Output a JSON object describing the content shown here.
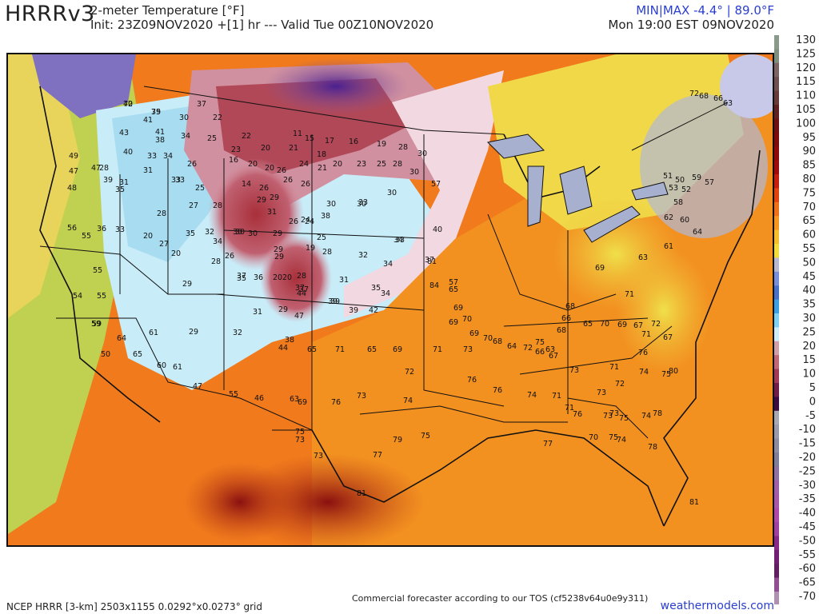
{
  "header": {
    "model": "HRRRv3",
    "product": "2-meter Temperature [°F]",
    "init_line": "Init: 23Z09NOV2020 +[1] hr --- Valid Tue 00Z10NOV2020",
    "minmax": "MIN|MAX -4.4° | 89.0°F",
    "local_time": "Mon 19:00 EST 09NOV2020"
  },
  "footer": {
    "grid_info": "NCEP HRRR [3-km] 2503x1155 0.0292°x0.0273° grid",
    "tos_notice": "Commercial forecaster according to our TOS (cf5238v64u0e9y311)",
    "site": "weathermodels.com"
  },
  "colorbar": {
    "labels": [
      "130",
      "125",
      "120",
      "115",
      "110",
      "105",
      "100",
      "95",
      "90",
      "85",
      "80",
      "75",
      "70",
      "65",
      "60",
      "55",
      "50",
      "45",
      "40",
      "35",
      "30",
      "25",
      "20",
      "15",
      "10",
      "5",
      "0",
      "-5",
      "-10",
      "-15",
      "-20",
      "-25",
      "-30",
      "-35",
      "-40",
      "-45",
      "-50",
      "-55",
      "-60",
      "-65",
      "-70"
    ],
    "colors": [
      "#8a9a8a",
      "#7f8f7f",
      "#7a6464",
      "#6e5050",
      "#663a3a",
      "#5e2020",
      "#6e1010",
      "#7e0a0a",
      "#8e0808",
      "#a00a0a",
      "#c41e0e",
      "#e0440e",
      "#f0701a",
      "#f5961e",
      "#f8bd2a",
      "#f2dc3a",
      "#b8b8d0",
      "#7b8ed8",
      "#4a70c8",
      "#3ea0e0",
      "#7fd0f0",
      "#d0ecf8",
      "#d0a0a8",
      "#c06878",
      "#a03858",
      "#701e48",
      "#3c0c40",
      "#a8a8b0",
      "#9a9aa8",
      "#8c8ca0",
      "#7e7e98",
      "#9070a0",
      "#a060a8",
      "#a858a8",
      "#b048a8",
      "#a040a0",
      "#882888",
      "#702070",
      "#602060",
      "#905090",
      "#b090b0"
    ]
  },
  "map_temps": [
    {
      "v": "40"
    },
    {
      "v": "39"
    },
    {
      "v": "30"
    },
    {
      "v": "37"
    },
    {
      "v": "22"
    },
    {
      "v": "41"
    },
    {
      "v": "41"
    },
    {
      "v": "43"
    },
    {
      "v": "38"
    },
    {
      "v": "34"
    },
    {
      "v": "25"
    },
    {
      "v": "22"
    },
    {
      "v": "20"
    },
    {
      "v": "21"
    },
    {
      "v": "11"
    },
    {
      "v": "15"
    },
    {
      "v": "17"
    },
    {
      "v": "16"
    },
    {
      "v": "19"
    },
    {
      "v": "28"
    },
    {
      "v": "40"
    },
    {
      "v": "33"
    },
    {
      "v": "34"
    },
    {
      "v": "23"
    },
    {
      "v": "16"
    },
    {
      "v": "20"
    },
    {
      "v": "18"
    },
    {
      "v": "49"
    },
    {
      "v": "47"
    },
    {
      "v": "47"
    },
    {
      "v": "28"
    },
    {
      "v": "31"
    },
    {
      "v": "33"
    },
    {
      "v": "26"
    },
    {
      "v": "20"
    },
    {
      "v": "26"
    },
    {
      "v": "24"
    },
    {
      "v": "21"
    },
    {
      "v": "20"
    },
    {
      "v": "23"
    },
    {
      "v": "25"
    },
    {
      "v": "28"
    },
    {
      "v": "30"
    },
    {
      "v": "30"
    },
    {
      "v": "48"
    },
    {
      "v": "39"
    },
    {
      "v": "35"
    },
    {
      "v": "33"
    },
    {
      "v": "25"
    },
    {
      "v": "14"
    },
    {
      "v": "26"
    },
    {
      "v": "26"
    },
    {
      "v": "29"
    },
    {
      "v": "26"
    },
    {
      "v": "30"
    },
    {
      "v": "33"
    },
    {
      "v": "57"
    },
    {
      "v": "31"
    },
    {
      "v": "27"
    },
    {
      "v": "28"
    },
    {
      "v": "29"
    },
    {
      "v": "30"
    },
    {
      "v": "32"
    },
    {
      "v": "38"
    },
    {
      "v": "26"
    },
    {
      "v": "31"
    },
    {
      "v": "26"
    },
    {
      "v": "24"
    },
    {
      "v": "30"
    },
    {
      "v": "30"
    },
    {
      "v": "56"
    },
    {
      "v": "55"
    },
    {
      "v": "36"
    },
    {
      "v": "33"
    },
    {
      "v": "28"
    },
    {
      "v": "35"
    },
    {
      "v": "30"
    },
    {
      "v": "30"
    },
    {
      "v": "29"
    },
    {
      "v": "25"
    },
    {
      "v": "24"
    },
    {
      "v": "29"
    },
    {
      "v": "40"
    },
    {
      "v": "34"
    },
    {
      "v": "20"
    },
    {
      "v": "27"
    },
    {
      "v": "34"
    },
    {
      "v": "19"
    },
    {
      "v": "20"
    },
    {
      "v": "28"
    },
    {
      "v": "32"
    },
    {
      "v": "34"
    },
    {
      "v": "33"
    },
    {
      "v": "37"
    },
    {
      "v": "55"
    },
    {
      "v": "20"
    },
    {
      "v": "28"
    },
    {
      "v": "29"
    },
    {
      "v": "37"
    },
    {
      "v": "35"
    },
    {
      "v": "28"
    },
    {
      "v": "31"
    },
    {
      "v": "35"
    },
    {
      "v": "34"
    },
    {
      "v": "39"
    },
    {
      "v": "55"
    },
    {
      "v": "29"
    },
    {
      "v": "37"
    },
    {
      "v": "36"
    },
    {
      "v": "20"
    },
    {
      "v": "37"
    },
    {
      "v": "44"
    },
    {
      "v": "39"
    },
    {
      "v": "54"
    },
    {
      "v": "31"
    },
    {
      "v": "29"
    },
    {
      "v": "47"
    },
    {
      "v": "39"
    },
    {
      "v": "42"
    },
    {
      "v": "59"
    },
    {
      "v": "59"
    },
    {
      "v": "29"
    },
    {
      "v": "32"
    },
    {
      "v": "38"
    },
    {
      "v": "57"
    },
    {
      "v": "64"
    },
    {
      "v": "61"
    },
    {
      "v": "44"
    },
    {
      "v": "65"
    },
    {
      "v": "71"
    },
    {
      "v": "65"
    },
    {
      "v": "69"
    },
    {
      "v": "72"
    },
    {
      "v": "71"
    },
    {
      "v": "73"
    },
    {
      "v": "50"
    },
    {
      "v": "65"
    },
    {
      "v": "60"
    },
    {
      "v": "61"
    },
    {
      "v": "47"
    },
    {
      "v": "55"
    },
    {
      "v": "46"
    },
    {
      "v": "63"
    },
    {
      "v": "69"
    },
    {
      "v": "76"
    },
    {
      "v": "73"
    },
    {
      "v": "74"
    },
    {
      "v": "76"
    },
    {
      "v": "76"
    },
    {
      "v": "74"
    },
    {
      "v": "71"
    },
    {
      "v": "71"
    },
    {
      "v": "77"
    },
    {
      "v": "70"
    },
    {
      "v": "75"
    },
    {
      "v": "74"
    },
    {
      "v": "75"
    },
    {
      "v": "73"
    },
    {
      "v": "73"
    },
    {
      "v": "77"
    },
    {
      "v": "79"
    },
    {
      "v": "75"
    },
    {
      "v": "81"
    },
    {
      "v": "81"
    },
    {
      "v": "84"
    },
    {
      "v": "65"
    },
    {
      "v": "69"
    },
    {
      "v": "70"
    },
    {
      "v": "69"
    },
    {
      "v": "69"
    },
    {
      "v": "70"
    },
    {
      "v": "68"
    },
    {
      "v": "64"
    },
    {
      "v": "72"
    },
    {
      "v": "66"
    },
    {
      "v": "63"
    },
    {
      "v": "67"
    },
    {
      "v": "68"
    },
    {
      "v": "66"
    },
    {
      "v": "65"
    },
    {
      "v": "70"
    },
    {
      "v": "69"
    },
    {
      "v": "67"
    },
    {
      "v": "72"
    },
    {
      "v": "71"
    },
    {
      "v": "71"
    },
    {
      "v": "67"
    },
    {
      "v": "72"
    },
    {
      "v": "68"
    },
    {
      "v": "66"
    },
    {
      "v": "63"
    },
    {
      "v": "51"
    },
    {
      "v": "53"
    },
    {
      "v": "50"
    },
    {
      "v": "52"
    },
    {
      "v": "59"
    },
    {
      "v": "57"
    },
    {
      "v": "58"
    },
    {
      "v": "62"
    },
    {
      "v": "60"
    },
    {
      "v": "64"
    },
    {
      "v": "61"
    },
    {
      "v": "63"
    },
    {
      "v": "69"
    },
    {
      "v": "68"
    },
    {
      "v": "71"
    },
    {
      "v": "73"
    },
    {
      "v": "75"
    },
    {
      "v": "76"
    },
    {
      "v": "80"
    },
    {
      "v": "78"
    },
    {
      "v": "81"
    },
    {
      "v": "74"
    },
    {
      "v": "73"
    },
    {
      "v": "75"
    },
    {
      "v": "78"
    },
    {
      "v": "75"
    },
    {
      "v": "74"
    },
    {
      "v": "72"
    },
    {
      "v": "73"
    },
    {
      "v": "73"
    },
    {
      "v": "76"
    },
    {
      "v": "72"
    },
    {
      "v": "75"
    }
  ]
}
